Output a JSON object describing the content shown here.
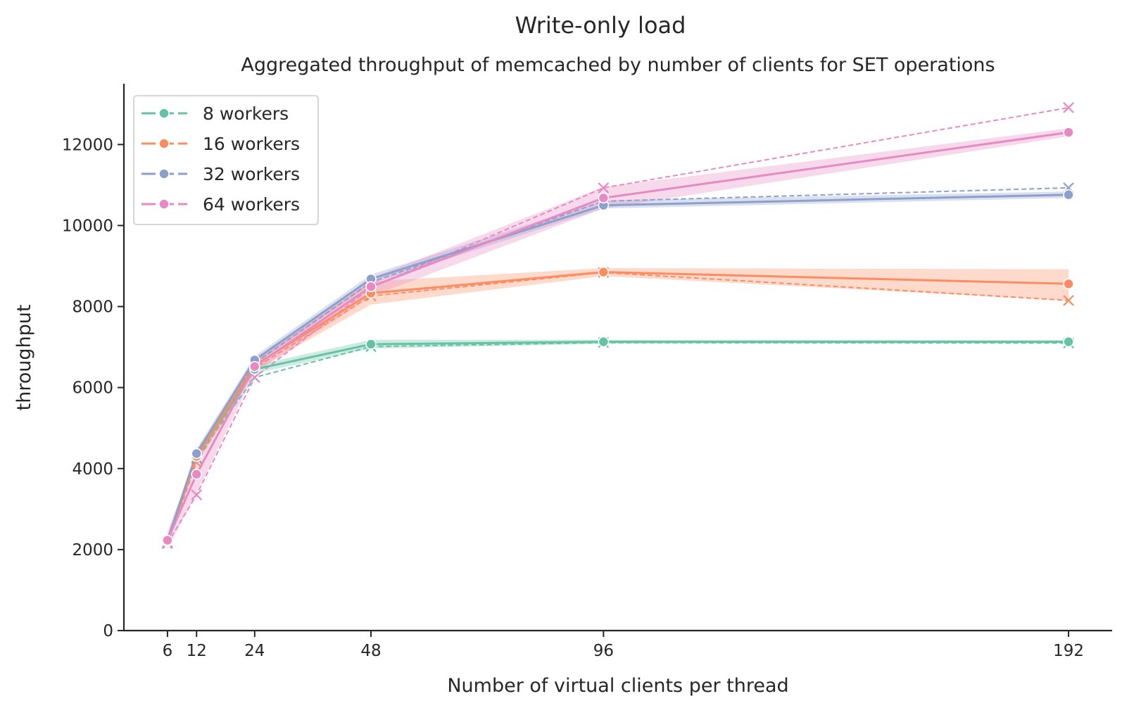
{
  "chart_data": {
    "type": "line",
    "title": "Write-only load",
    "subtitle": "Aggregated throughput of memcached by number of clients for SET operations",
    "xlabel": "Number of virtual clients per thread",
    "ylabel": "throughput",
    "x": [
      6,
      12,
      24,
      48,
      96,
      192
    ],
    "xticks": [
      "6",
      "12",
      "24",
      "48",
      "96",
      "192"
    ],
    "xlim": [
      -3,
      201
    ],
    "yticks": [
      "0",
      "2000",
      "4000",
      "6000",
      "8000",
      "10000",
      "12000"
    ],
    "ylim": [
      0,
      13500
    ],
    "grid": false,
    "legend_position": "top-left",
    "series": [
      {
        "name": "8 workers",
        "color": "#66c2a5",
        "mean": [
          2200,
          4300,
          6450,
          7070,
          7130,
          7130
        ],
        "lower": [
          2100,
          4150,
          6350,
          6960,
          7080,
          7090
        ],
        "upper": [
          2300,
          4450,
          6550,
          7180,
          7180,
          7170
        ],
        "alt": [
          2150,
          4250,
          6250,
          7010,
          7110,
          7100
        ]
      },
      {
        "name": "16 workers",
        "color": "#fc8d62",
        "mean": [
          2200,
          4300,
          6550,
          8330,
          8850,
          8560
        ],
        "lower": [
          2100,
          4150,
          6420,
          8050,
          8750,
          8150
        ],
        "upper": [
          2300,
          4450,
          6650,
          8620,
          8950,
          8920
        ],
        "alt": [
          2150,
          4150,
          6480,
          8260,
          8840,
          8150
        ]
      },
      {
        "name": "32 workers",
        "color": "#8da0cb",
        "mean": [
          2230,
          4370,
          6680,
          8680,
          10500,
          10760
        ],
        "lower": [
          2130,
          4250,
          6580,
          8560,
          10420,
          10680
        ],
        "upper": [
          2330,
          4490,
          6780,
          8790,
          10620,
          10840
        ],
        "alt": [
          2180,
          4270,
          6600,
          8600,
          10600,
          10930
        ]
      },
      {
        "name": "64 workers",
        "color": "#e78ac3",
        "mean": [
          2230,
          3860,
          6520,
          8490,
          10680,
          12300
        ],
        "lower": [
          2000,
          3400,
          6350,
          8250,
          10420,
          12200
        ],
        "upper": [
          2450,
          4300,
          6680,
          8700,
          10950,
          12400
        ],
        "alt": [
          2150,
          3350,
          6250,
          8470,
          10930,
          12910
        ]
      }
    ]
  }
}
